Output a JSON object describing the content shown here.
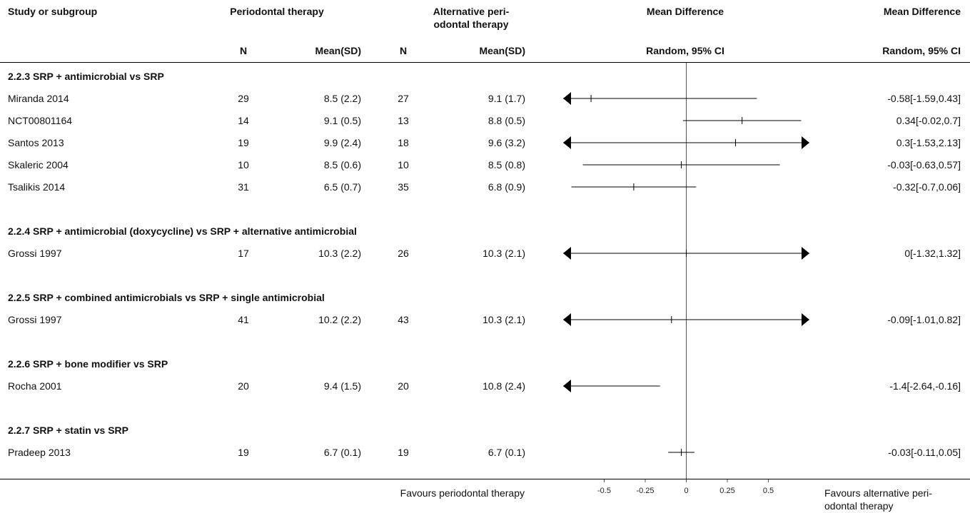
{
  "header": {
    "study_col": "Study or subgroup",
    "group1": "Periodontal therapy",
    "group2_line1": "Alternative peri-",
    "group2_line2": "odontal therapy",
    "md_plot_title": "Mean Difference",
    "md_text_title": "Mean Difference",
    "n1": "N",
    "mean1": "Mean(SD)",
    "n2": "N",
    "mean2": "Mean(SD)",
    "plot_method": "Random, 95% CI",
    "text_method": "Random, 95% CI"
  },
  "subgroups": [
    {
      "title": "2.2.3 SRP + antimicrobial vs SRP",
      "studies": [
        {
          "name": "Miranda 2014",
          "n1": "29",
          "m1": "8.5 (2.2)",
          "n2": "27",
          "m2": "9.1 (1.7)",
          "ci": "-0.58[-1.59,0.43]"
        },
        {
          "name": "NCT00801164",
          "n1": "14",
          "m1": "9.1 (0.5)",
          "n2": "13",
          "m2": "8.8 (0.5)",
          "ci": "0.34[-0.02,0.7]"
        },
        {
          "name": "Santos 2013",
          "n1": "19",
          "m1": "9.9 (2.4)",
          "n2": "18",
          "m2": "9.6 (3.2)",
          "ci": "0.3[-1.53,2.13]"
        },
        {
          "name": "Skaleric 2004",
          "n1": "10",
          "m1": "8.5 (0.6)",
          "n2": "10",
          "m2": "8.5 (0.8)",
          "ci": "-0.03[-0.63,0.57]"
        },
        {
          "name": "Tsalikis 2014",
          "n1": "31",
          "m1": "6.5 (0.7)",
          "n2": "35",
          "m2": "6.8 (0.9)",
          "ci": "-0.32[-0.7,0.06]"
        }
      ]
    },
    {
      "title": "2.2.4 SRP + antimicrobial (doxycycline) vs SRP + alternative antimicrobial",
      "studies": [
        {
          "name": "Grossi 1997",
          "n1": "17",
          "m1": "10.3 (2.2)",
          "n2": "26",
          "m2": "10.3 (2.1)",
          "ci": "0[-1.32,1.32]"
        }
      ]
    },
    {
      "title": "2.2.5 SRP + combined antimicrobials vs SRP + single antimicrobial",
      "studies": [
        {
          "name": "Grossi 1997",
          "n1": "41",
          "m1": "10.2 (2.2)",
          "n2": "43",
          "m2": "10.3 (2.1)",
          "ci": "-0.09[-1.01,0.82]"
        }
      ]
    },
    {
      "title": "2.2.6 SRP + bone modifier vs SRP",
      "studies": [
        {
          "name": "Rocha 2001",
          "n1": "20",
          "m1": "9.4 (1.5)",
          "n2": "20",
          "m2": "10.8 (2.4)",
          "ci": "-1.4[-2.64,-0.16]"
        }
      ]
    },
    {
      "title": "2.2.7 SRP + statin vs SRP",
      "studies": [
        {
          "name": "Pradeep 2013",
          "n1": "19",
          "m1": "6.7 (0.1)",
          "n2": "19",
          "m2": "6.7 (0.1)",
          "ci": "-0.03[-0.11,0.05]"
        }
      ]
    }
  ],
  "footer": {
    "favours_left": "Favours periodontal therapy",
    "favours_right_line1": "Favours alternative peri-",
    "favours_right_line2": "odontal therapy"
  },
  "chart_data": {
    "type": "forest",
    "effect_measure": "Mean Difference, Random, 95% CI",
    "xlim": [
      -0.75,
      0.75
    ],
    "xticks": [
      -0.5,
      -0.25,
      0,
      0.25,
      0.5
    ],
    "xtick_labels": [
      "-0.5",
      "-0.25",
      "0",
      "0.25",
      "0.5"
    ],
    "points": [
      {
        "study": "Miranda 2014",
        "estimate": -0.58,
        "lower": -1.59,
        "upper": 0.43
      },
      {
        "study": "NCT00801164",
        "estimate": 0.34,
        "lower": -0.02,
        "upper": 0.7
      },
      {
        "study": "Santos 2013",
        "estimate": 0.3,
        "lower": -1.53,
        "upper": 2.13
      },
      {
        "study": "Skaleric 2004",
        "estimate": -0.03,
        "lower": -0.63,
        "upper": 0.57
      },
      {
        "study": "Tsalikis 2014",
        "estimate": -0.32,
        "lower": -0.7,
        "upper": 0.06
      },
      {
        "study": "Grossi 1997",
        "estimate": 0,
        "lower": -1.32,
        "upper": 1.32
      },
      {
        "study": "Grossi 1997",
        "estimate": -0.09,
        "lower": -1.01,
        "upper": 0.82
      },
      {
        "study": "Rocha 2001",
        "estimate": -1.4,
        "lower": -2.64,
        "upper": -0.16
      },
      {
        "study": "Pradeep 2013",
        "estimate": -0.03,
        "lower": -0.11,
        "upper": 0.05
      }
    ]
  }
}
